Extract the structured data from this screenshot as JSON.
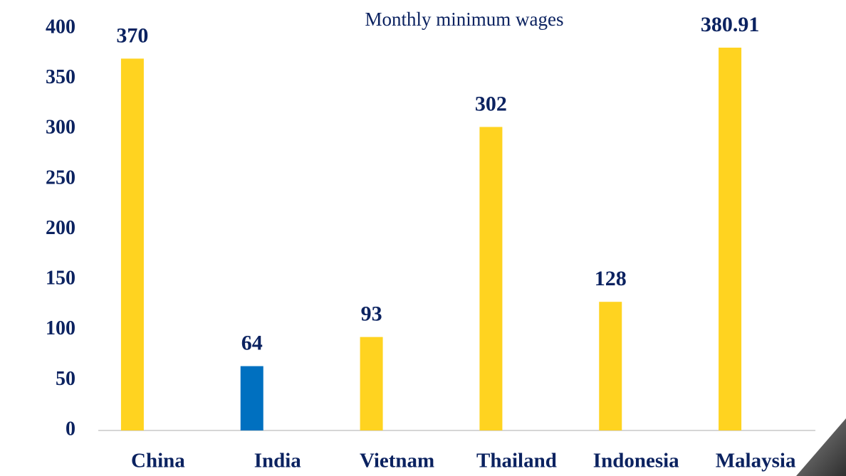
{
  "chart_data": {
    "type": "bar",
    "title": "Monthly minimum wages",
    "categories": [
      "China",
      "India",
      "Vietnam",
      "Thailand",
      "Indonesia",
      "Malaysia"
    ],
    "values": [
      370,
      64,
      93,
      302,
      128,
      380.91
    ],
    "colors": [
      "#ffd320",
      "#0070c0",
      "#ffd320",
      "#ffd320",
      "#ffd320",
      "#ffd320"
    ],
    "ylim": [
      0,
      400
    ],
    "yticks": [
      0,
      50,
      100,
      150,
      200,
      250,
      300,
      350,
      400
    ],
    "grid": false
  }
}
